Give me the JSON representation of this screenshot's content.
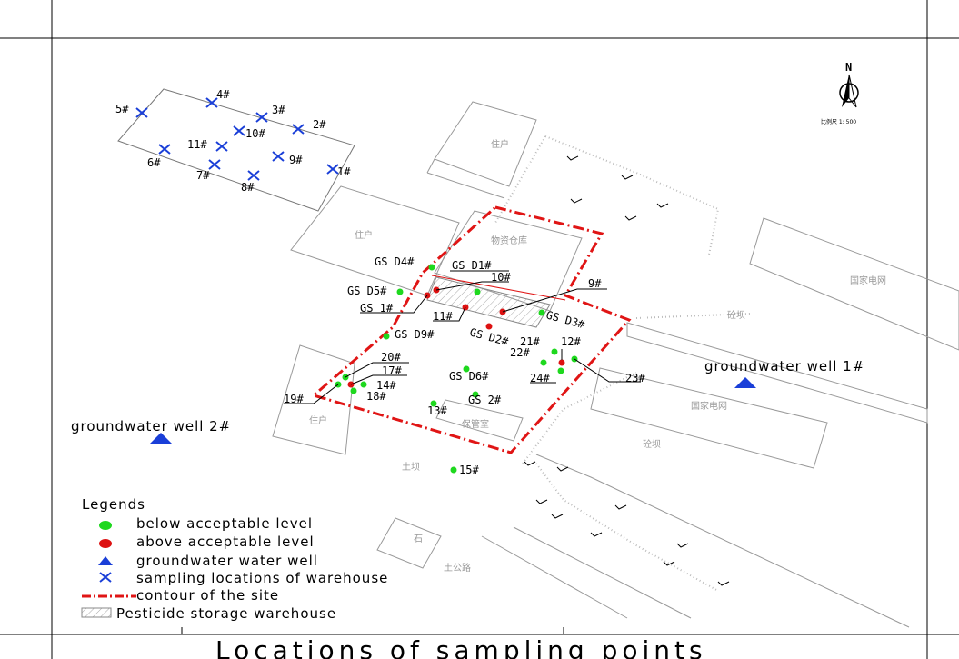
{
  "title": "Locations of sampling points",
  "north_label": "N",
  "scale_text": "比例尺 1: 500",
  "buildings": [
    {
      "label": "住户"
    },
    {
      "label": "住户"
    },
    {
      "label": "物资仓库"
    },
    {
      "label": "国家电网"
    },
    {
      "label": "砼坝"
    },
    {
      "label": "国家电网"
    },
    {
      "label": "砼坝"
    },
    {
      "label": "住户"
    },
    {
      "label": "保管室"
    },
    {
      "label": "土坝"
    },
    {
      "label": "石"
    },
    {
      "label": "土公路"
    }
  ],
  "warehouse_points": [
    "5#",
    "4#",
    "3#",
    "2#",
    "1#",
    "11#",
    "10#",
    "6#",
    "7#",
    "8#",
    "9#"
  ],
  "points": [
    {
      "label": "GS D4#",
      "status": "below"
    },
    {
      "label": "GS D1#",
      "status": "below"
    },
    {
      "label": "10#",
      "status": "above"
    },
    {
      "label": "GS D5#",
      "status": "below"
    },
    {
      "label": "GS 1#",
      "status": "above"
    },
    {
      "label": "9#",
      "status": "above"
    },
    {
      "label": "11#",
      "status": "above"
    },
    {
      "label": "GS D2#",
      "status": "above"
    },
    {
      "label": "GS D3#",
      "status": "below"
    },
    {
      "label": "GS D9#",
      "status": "below"
    },
    {
      "label": "21#",
      "status": "below"
    },
    {
      "label": "12#",
      "status": "above"
    },
    {
      "label": "22#",
      "status": "below"
    },
    {
      "label": "20#",
      "status": "below"
    },
    {
      "label": "GS D6#",
      "status": "below"
    },
    {
      "label": "17#",
      "status": "above"
    },
    {
      "label": "24#",
      "status": "below"
    },
    {
      "label": "23#",
      "status": "below"
    },
    {
      "label": "14#",
      "status": "below"
    },
    {
      "label": "18#",
      "status": "below"
    },
    {
      "label": "19#",
      "status": "below"
    },
    {
      "label": "GS 2#",
      "status": "below"
    },
    {
      "label": "13#",
      "status": "below"
    },
    {
      "label": "15#",
      "status": "below"
    }
  ],
  "wells": [
    {
      "label": "groundwater well 1#"
    },
    {
      "label": "groundwater well 2#"
    }
  ],
  "legend": {
    "title": "Legends",
    "items": [
      {
        "label": "below acceptable level",
        "symbol": "green-dot"
      },
      {
        "label": "above acceptable level",
        "symbol": "red-dot"
      },
      {
        "label": "groundwater water well",
        "symbol": "blue-triangle"
      },
      {
        "label": "sampling locations of warehouse",
        "symbol": "blue-cross"
      },
      {
        "label": "contour of the site",
        "symbol": "red-dashdot-line"
      },
      {
        "label": "Pesticide storage warehouse",
        "symbol": "hatched-box"
      }
    ]
  },
  "colors": {
    "below": "#1ed81e",
    "above": "#dd1111",
    "well": "#1a3fd8",
    "cross": "#1a3fd8",
    "contour": "#e01515",
    "building": "#999999"
  }
}
